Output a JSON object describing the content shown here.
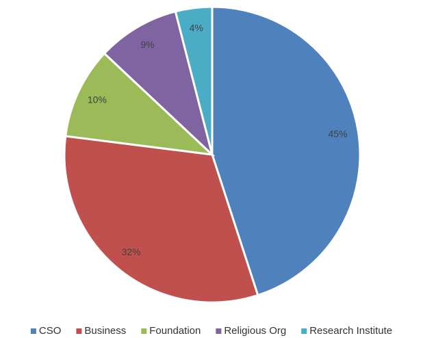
{
  "chart_data": {
    "type": "pie",
    "categories": [
      "CSO",
      "Business",
      "Foundation",
      "Religious Org",
      "Research Institute"
    ],
    "values": [
      45,
      32,
      10,
      9,
      4
    ],
    "value_labels": [
      "45%",
      "32%",
      "10%",
      "9%",
      "4%"
    ],
    "colors": [
      "#4f81bd",
      "#c0504d",
      "#9bbb59",
      "#8064a2",
      "#4bacc6"
    ],
    "legend": "bottom"
  }
}
